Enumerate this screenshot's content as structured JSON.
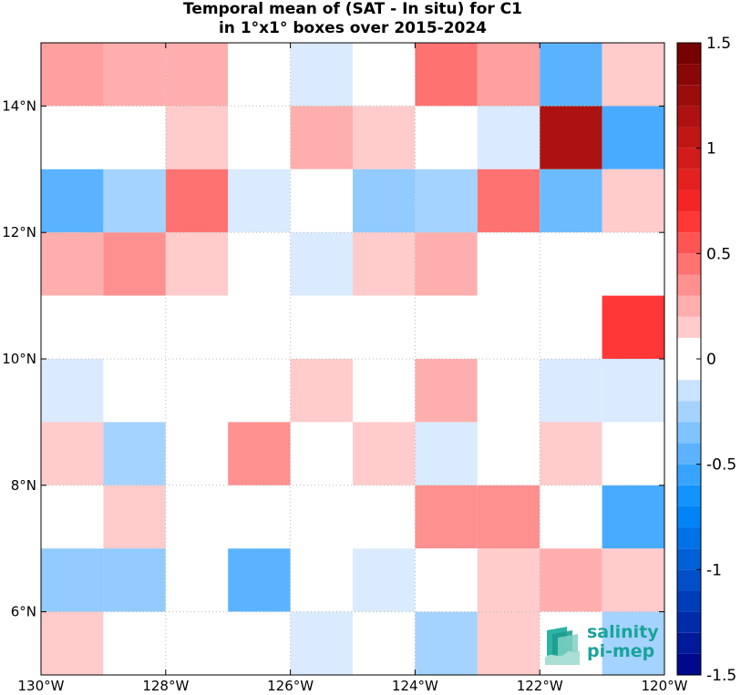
{
  "title_line1": "Temporal mean of (SAT - In situ) for C1",
  "title_line2": "in 1°x1° boxes over 2015-2024",
  "logo": {
    "line1": "salinity",
    "line2": "pi-mep"
  },
  "chart_data": {
    "type": "heatmap",
    "x_ticks": [
      {
        "value": -130,
        "label": "130°W"
      },
      {
        "value": -128,
        "label": "128°W"
      },
      {
        "value": -126,
        "label": "126°W"
      },
      {
        "value": -124,
        "label": "124°W"
      },
      {
        "value": -122,
        "label": "122°W"
      },
      {
        "value": -120,
        "label": "120°W"
      }
    ],
    "y_ticks": [
      {
        "value": 6,
        "label": "6°N"
      },
      {
        "value": 8,
        "label": "8°N"
      },
      {
        "value": 10,
        "label": "10°N"
      },
      {
        "value": 12,
        "label": "12°N"
      },
      {
        "value": 14,
        "label": "14°N"
      }
    ],
    "xlim": [
      -130,
      -120
    ],
    "ylim": [
      5,
      15
    ],
    "cell_size_deg": 1,
    "grid": true,
    "colorbar": {
      "range": [
        -1.5,
        1.5
      ],
      "step": 0.1,
      "tick_values": [
        1.5,
        1,
        0.5,
        0,
        -0.5,
        -1,
        -1.5
      ],
      "tick_labels": [
        "1.5",
        "1",
        "0.5",
        "0",
        "-0.5",
        "-1",
        "-1.5"
      ]
    },
    "rows_lat_top_to_bottom": [
      14.5,
      13.5,
      12.5,
      11.5,
      10.5,
      9.5,
      8.5,
      7.5,
      6.5,
      5.5
    ],
    "cols_lon_left_to_right": [
      -129.5,
      -128.5,
      -127.5,
      -126.5,
      -125.5,
      -124.5,
      -123.5,
      -122.5,
      -121.5,
      -120.5
    ],
    "values": [
      [
        0.3,
        0.25,
        0.25,
        0,
        -0.1,
        0,
        0.45,
        0.3,
        -0.45,
        0.15
      ],
      [
        0,
        0,
        0.15,
        0,
        0.25,
        0.15,
        0,
        -0.1,
        1.15,
        -0.5
      ],
      [
        -0.45,
        -0.25,
        0.45,
        -0.1,
        0,
        -0.3,
        -0.25,
        0.45,
        -0.4,
        0.15
      ],
      [
        0.25,
        0.35,
        0.15,
        0,
        -0.1,
        0.15,
        0.25,
        0,
        0,
        0
      ],
      [
        0,
        0,
        0,
        0,
        0,
        0,
        0,
        0,
        0,
        0.65
      ],
      [
        -0.1,
        0,
        0,
        0,
        0.15,
        0,
        0.25,
        0,
        -0.1,
        -0.1
      ],
      [
        0.15,
        -0.25,
        0,
        0.35,
        0,
        0.15,
        -0.1,
        0,
        0.15,
        0
      ],
      [
        0,
        0.15,
        0,
        0,
        0,
        0,
        0.35,
        0.35,
        0,
        -0.5
      ],
      [
        -0.3,
        -0.3,
        0,
        -0.45,
        0,
        -0.1,
        0,
        0.15,
        0.25,
        0.15
      ],
      [
        0.15,
        0,
        0,
        0,
        -0.1,
        0,
        -0.25,
        0.15,
        0,
        -0.25
      ]
    ]
  }
}
